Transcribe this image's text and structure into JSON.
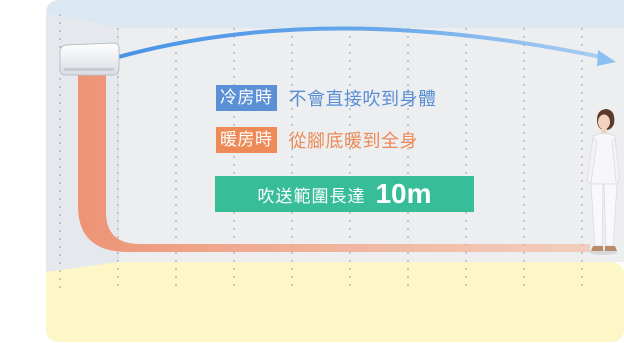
{
  "cooling": {
    "tag": "冷房時",
    "text": "不會直接吹到身體"
  },
  "heating": {
    "tag": "暖房時",
    "text": "從腳底暖到全身"
  },
  "range": {
    "text": "吹送範圍長達",
    "value": "10m"
  },
  "colors": {
    "cool_accent": "#5b8fd6",
    "heat_accent": "#ee8a57",
    "range_badge": "#37bd98",
    "floor": "#fdf6c6",
    "back_wall": "#eceef0",
    "ceiling": "#dce8f1"
  },
  "icons": [
    "air-conditioner-icon",
    "cool-airflow-arrow-icon",
    "warm-airflow-arrow-icon",
    "person-figure-icon"
  ]
}
